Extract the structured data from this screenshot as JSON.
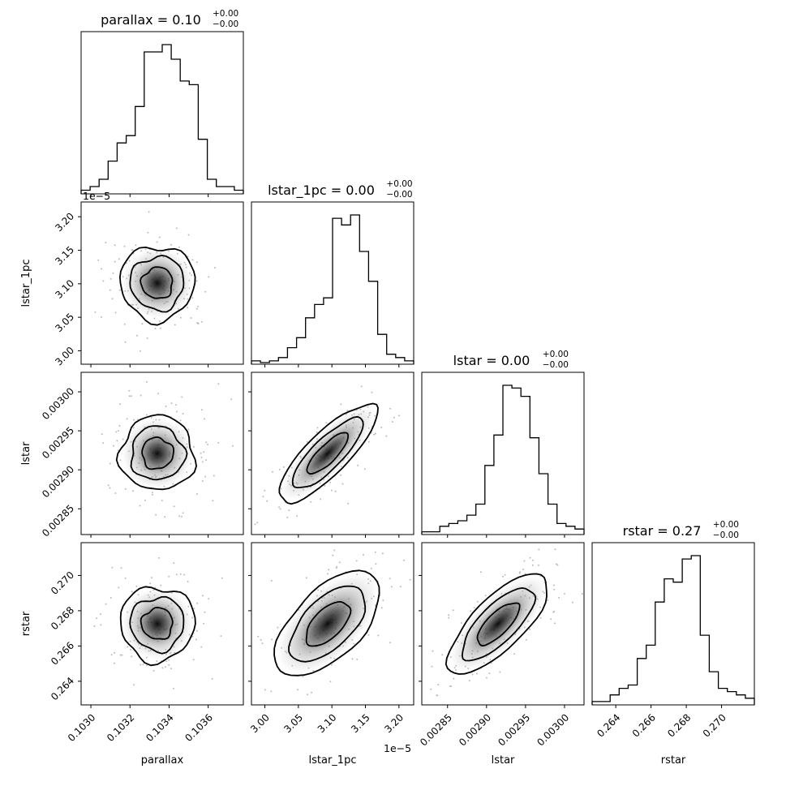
{
  "chart_data": {
    "type": "corner",
    "parameters": [
      "parallax",
      "lstar_1pc",
      "lstar",
      "rstar"
    ],
    "axis_labels": [
      "parallax",
      "lstar_1pc",
      "lstar",
      "rstar"
    ],
    "titles": [
      {
        "param": "parallax",
        "main": "parallax = 0.10",
        "sup": "+0.00",
        "sub": "−0.00"
      },
      {
        "param": "lstar_1pc",
        "main": "lstar_1pc = 0.00",
        "sup": "+0.00",
        "sub": "−0.00"
      },
      {
        "param": "lstar",
        "main": "lstar = 0.00",
        "sup": "+0.00",
        "sub": "−0.00"
      },
      {
        "param": "rstar",
        "main": "rstar = 0.27",
        "sup": "+0.00",
        "sub": "−0.00"
      }
    ],
    "ranges": {
      "parallax": [
        0.10295,
        0.10378
      ],
      "lstar_1pc": [
        2.98e-05,
        3.222e-05
      ],
      "lstar": [
        0.002817,
        0.003025
      ],
      "rstar": [
        0.26266,
        0.27186
      ]
    },
    "scale_labels": {
      "lstar_1pc": "1e−5"
    },
    "ticks": {
      "parallax": {
        "values": [
          0.103,
          0.1032,
          0.1034,
          0.1036
        ],
        "labels": [
          "0.1030",
          "0.1032",
          "0.1034",
          "0.1036"
        ]
      },
      "lstar_1pc": {
        "values": [
          3e-05,
          3.05e-05,
          3.1e-05,
          3.15e-05,
          3.2e-05
        ],
        "labels": [
          "3.00",
          "3.05",
          "3.10",
          "3.15",
          "3.20"
        ]
      },
      "lstar": {
        "values": [
          0.00285,
          0.0029,
          0.00295,
          0.003
        ],
        "labels": [
          "0.00285",
          "0.00290",
          "0.00295",
          "0.00300"
        ]
      },
      "rstar": {
        "values": [
          0.264,
          0.266,
          0.268,
          0.27
        ],
        "labels": [
          "0.264",
          "0.266",
          "0.268",
          "0.270"
        ]
      }
    },
    "histograms": {
      "parallax": [
        1,
        2,
        4,
        9,
        14,
        16,
        24,
        39,
        39,
        41,
        37,
        31,
        30,
        15,
        4,
        2,
        2,
        1
      ],
      "lstar_1pc": [
        1,
        0.5,
        1,
        2,
        5,
        8,
        14,
        18,
        20,
        44,
        42,
        45,
        34,
        25,
        9,
        3,
        2,
        1
      ],
      "lstar": [
        1,
        1,
        3,
        4,
        5,
        7,
        11,
        25,
        36,
        54,
        53,
        50,
        35,
        22,
        11,
        4,
        3,
        2
      ],
      "rstar": [
        1,
        1,
        3,
        5,
        6,
        14,
        18,
        31,
        38,
        37,
        44,
        45,
        21,
        10,
        5,
        4,
        3,
        2
      ]
    },
    "correlations": {
      "lstar_1pc|parallax": 0.0,
      "lstar|parallax": 0.0,
      "lstar|lstar_1pc": 0.97,
      "rstar|parallax": 0.0,
      "rstar|lstar_1pc": 0.9,
      "rstar|lstar": 0.95
    },
    "contour_levels": [
      "1-sigma",
      "1.5-sigma",
      "2-sigma"
    ],
    "grid": false,
    "legend": "none"
  }
}
